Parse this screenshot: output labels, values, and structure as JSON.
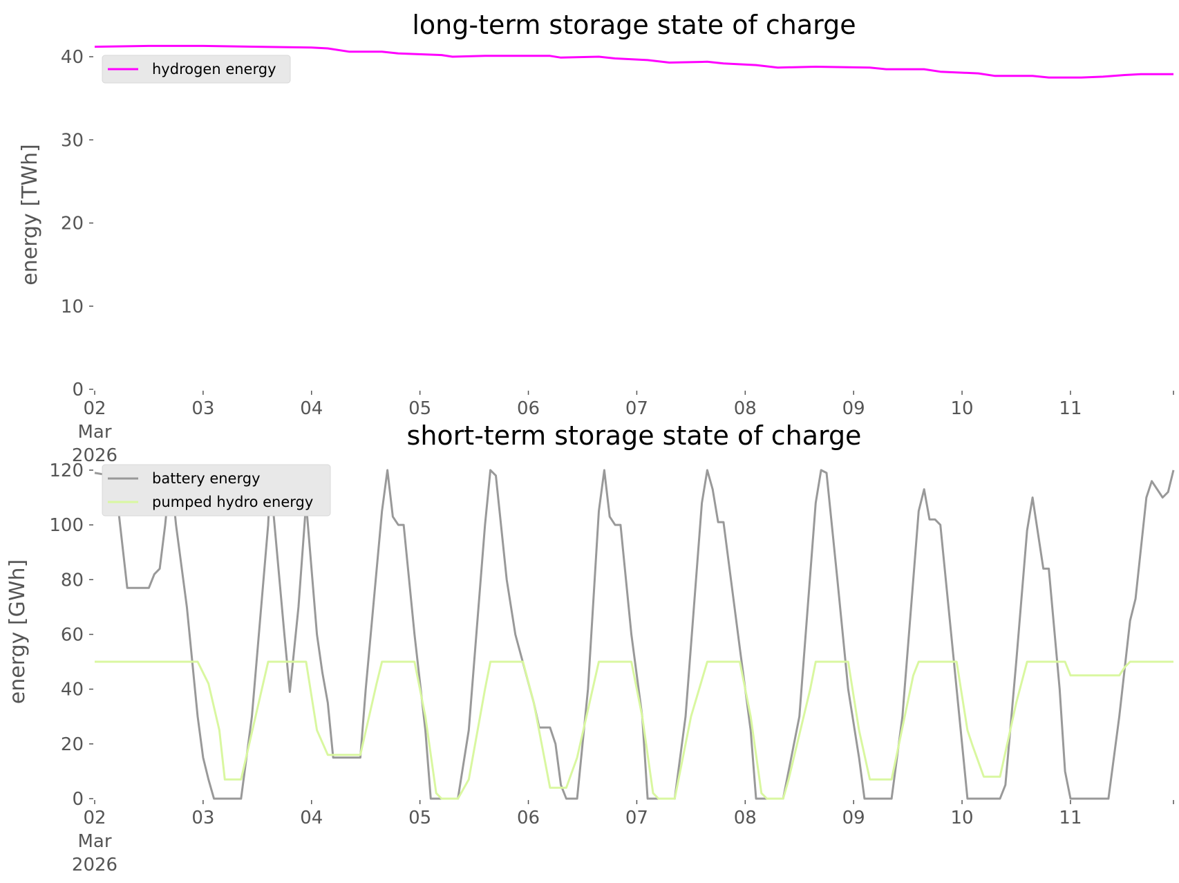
{
  "chart_data": [
    {
      "type": "line",
      "title": "long-term storage state of charge",
      "ylabel": "energy [TWh]",
      "xlabel": "",
      "ylim": [
        0,
        42
      ],
      "yticks": [
        0,
        10,
        20,
        30,
        40
      ],
      "xlim": [
        0,
        9.95
      ],
      "xticks": [
        {
          "day": 0,
          "lines": [
            "02",
            "Mar",
            "2026"
          ]
        },
        {
          "day": 1,
          "lines": [
            "03"
          ]
        },
        {
          "day": 2,
          "lines": [
            "04"
          ]
        },
        {
          "day": 3,
          "lines": [
            "05"
          ]
        },
        {
          "day": 4,
          "lines": [
            "06"
          ]
        },
        {
          "day": 5,
          "lines": [
            "07"
          ]
        },
        {
          "day": 6,
          "lines": [
            "08"
          ]
        },
        {
          "day": 7,
          "lines": [
            "09"
          ]
        },
        {
          "day": 8,
          "lines": [
            "10"
          ]
        },
        {
          "day": 9,
          "lines": [
            "11"
          ]
        }
      ],
      "grid": false,
      "legend_position": "upper-left",
      "series": [
        {
          "name": "hydrogen energy",
          "color": "#ff00ff",
          "points": [
            [
              0,
              41.2
            ],
            [
              0.5,
              41.3
            ],
            [
              1,
              41.3
            ],
            [
              1.5,
              41.2
            ],
            [
              2,
              41.1
            ],
            [
              2.15,
              41.0
            ],
            [
              2.35,
              40.6
            ],
            [
              2.65,
              40.6
            ],
            [
              2.8,
              40.4
            ],
            [
              3.2,
              40.2
            ],
            [
              3.3,
              40.0
            ],
            [
              3.6,
              40.1
            ],
            [
              4.2,
              40.1
            ],
            [
              4.3,
              39.9
            ],
            [
              4.65,
              40.0
            ],
            [
              4.8,
              39.8
            ],
            [
              5.1,
              39.6
            ],
            [
              5.3,
              39.3
            ],
            [
              5.65,
              39.4
            ],
            [
              5.8,
              39.2
            ],
            [
              6.1,
              39.0
            ],
            [
              6.3,
              38.7
            ],
            [
              6.65,
              38.8
            ],
            [
              7.15,
              38.7
            ],
            [
              7.3,
              38.5
            ],
            [
              7.65,
              38.5
            ],
            [
              7.8,
              38.2
            ],
            [
              8.15,
              38.0
            ],
            [
              8.3,
              37.7
            ],
            [
              8.65,
              37.7
            ],
            [
              8.8,
              37.5
            ],
            [
              9.1,
              37.5
            ],
            [
              9.3,
              37.6
            ],
            [
              9.5,
              37.8
            ],
            [
              9.65,
              37.9
            ],
            [
              9.95,
              37.9
            ]
          ]
        }
      ]
    },
    {
      "type": "line",
      "title": "short-term storage state of charge",
      "ylabel": "energy [GWh]",
      "xlabel": "",
      "ylim": [
        0,
        122
      ],
      "yticks": [
        0,
        20,
        40,
        60,
        80,
        100,
        120
      ],
      "xlim": [
        0,
        9.95
      ],
      "xticks": [
        {
          "day": 0,
          "lines": [
            "02",
            "Mar",
            "2026"
          ]
        },
        {
          "day": 1,
          "lines": [
            "03"
          ]
        },
        {
          "day": 2,
          "lines": [
            "04"
          ]
        },
        {
          "day": 3,
          "lines": [
            "05"
          ]
        },
        {
          "day": 4,
          "lines": [
            "06"
          ]
        },
        {
          "day": 5,
          "lines": [
            "07"
          ]
        },
        {
          "day": 6,
          "lines": [
            "08"
          ]
        },
        {
          "day": 7,
          "lines": [
            "09"
          ]
        },
        {
          "day": 8,
          "lines": [
            "10"
          ]
        },
        {
          "day": 9,
          "lines": [
            "11"
          ]
        }
      ],
      "grid": false,
      "legend_position": "upper-left",
      "series": [
        {
          "name": "battery energy",
          "color": "#999999",
          "points": [
            [
              0,
              119
            ],
            [
              0.15,
              118
            ],
            [
              0.2,
              112
            ],
            [
              0.3,
              77
            ],
            [
              0.45,
              77
            ],
            [
              0.5,
              77
            ],
            [
              0.55,
              82
            ],
            [
              0.6,
              84
            ],
            [
              0.65,
              100
            ],
            [
              0.7,
              120
            ],
            [
              0.75,
              100
            ],
            [
              0.85,
              70
            ],
            [
              0.95,
              30
            ],
            [
              1.0,
              15
            ],
            [
              1.05,
              7
            ],
            [
              1.1,
              0
            ],
            [
              1.35,
              0
            ],
            [
              1.45,
              30
            ],
            [
              1.6,
              100
            ],
            [
              1.62,
              117
            ],
            [
              1.75,
              60
            ],
            [
              1.8,
              39
            ],
            [
              1.88,
              70
            ],
            [
              1.95,
              108
            ],
            [
              2.05,
              60
            ],
            [
              2.1,
              46
            ],
            [
              2.15,
              35
            ],
            [
              2.2,
              15
            ],
            [
              2.45,
              15
            ],
            [
              2.5,
              40
            ],
            [
              2.65,
              105
            ],
            [
              2.7,
              120
            ],
            [
              2.75,
              103
            ],
            [
              2.8,
              100
            ],
            [
              2.85,
              100
            ],
            [
              2.95,
              60
            ],
            [
              3.05,
              25
            ],
            [
              3.1,
              0
            ],
            [
              3.35,
              0
            ],
            [
              3.45,
              25
            ],
            [
              3.6,
              100
            ],
            [
              3.65,
              120
            ],
            [
              3.7,
              118
            ],
            [
              3.8,
              80
            ],
            [
              3.88,
              60
            ],
            [
              4.05,
              35
            ],
            [
              4.1,
              26
            ],
            [
              4.2,
              26
            ],
            [
              4.25,
              20
            ],
            [
              4.3,
              5
            ],
            [
              4.35,
              0
            ],
            [
              4.45,
              0
            ],
            [
              4.55,
              40
            ],
            [
              4.65,
              105
            ],
            [
              4.7,
              120
            ],
            [
              4.75,
              103
            ],
            [
              4.8,
              100
            ],
            [
              4.85,
              100
            ],
            [
              4.95,
              60
            ],
            [
              5.05,
              30
            ],
            [
              5.1,
              0
            ],
            [
              5.35,
              0
            ],
            [
              5.45,
              30
            ],
            [
              5.6,
              108
            ],
            [
              5.65,
              120
            ],
            [
              5.7,
              113
            ],
            [
              5.75,
              101
            ],
            [
              5.8,
              101
            ],
            [
              5.95,
              55
            ],
            [
              6.05,
              25
            ],
            [
              6.1,
              0
            ],
            [
              6.35,
              0
            ],
            [
              6.5,
              30
            ],
            [
              6.65,
              108
            ],
            [
              6.7,
              120
            ],
            [
              6.75,
              119
            ],
            [
              6.85,
              80
            ],
            [
              6.95,
              40
            ],
            [
              7.05,
              15
            ],
            [
              7.1,
              0
            ],
            [
              7.35,
              0
            ],
            [
              7.45,
              30
            ],
            [
              7.55,
              80
            ],
            [
              7.6,
              105
            ],
            [
              7.65,
              113
            ],
            [
              7.7,
              102
            ],
            [
              7.75,
              102
            ],
            [
              7.8,
              100
            ],
            [
              7.9,
              60
            ],
            [
              8.0,
              20
            ],
            [
              8.05,
              0
            ],
            [
              8.35,
              0
            ],
            [
              8.4,
              5
            ],
            [
              8.5,
              50
            ],
            [
              8.6,
              98
            ],
            [
              8.65,
              110
            ],
            [
              8.7,
              97
            ],
            [
              8.75,
              84
            ],
            [
              8.8,
              84
            ],
            [
              8.9,
              40
            ],
            [
              8.95,
              10
            ],
            [
              9.0,
              0
            ],
            [
              9.35,
              0
            ],
            [
              9.45,
              30
            ],
            [
              9.55,
              65
            ],
            [
              9.6,
              73
            ],
            [
              9.7,
              110
            ],
            [
              9.75,
              116
            ],
            [
              9.85,
              110
            ],
            [
              9.9,
              112
            ],
            [
              9.95,
              120
            ]
          ]
        },
        {
          "name": "pumped hydro energy",
          "color": "#d9f7a0",
          "points": [
            [
              0,
              50
            ],
            [
              0.95,
              50
            ],
            [
              1.05,
              42
            ],
            [
              1.15,
              25
            ],
            [
              1.2,
              7
            ],
            [
              1.35,
              7
            ],
            [
              1.6,
              50
            ],
            [
              1.95,
              50
            ],
            [
              2.05,
              25
            ],
            [
              2.15,
              16
            ],
            [
              2.45,
              16
            ],
            [
              2.6,
              42
            ],
            [
              2.65,
              50
            ],
            [
              2.95,
              50
            ],
            [
              3.05,
              30
            ],
            [
              3.15,
              2
            ],
            [
              3.2,
              0
            ],
            [
              3.35,
              0
            ],
            [
              3.45,
              7
            ],
            [
              3.6,
              40
            ],
            [
              3.65,
              50
            ],
            [
              3.95,
              50
            ],
            [
              4.05,
              35
            ],
            [
              4.2,
              4
            ],
            [
              4.35,
              4
            ],
            [
              4.45,
              15
            ],
            [
              4.65,
              50
            ],
            [
              4.95,
              50
            ],
            [
              5.05,
              30
            ],
            [
              5.15,
              2
            ],
            [
              5.2,
              0
            ],
            [
              5.35,
              0
            ],
            [
              5.5,
              30
            ],
            [
              5.65,
              50
            ],
            [
              5.95,
              50
            ],
            [
              6.05,
              30
            ],
            [
              6.15,
              2
            ],
            [
              6.2,
              0
            ],
            [
              6.35,
              0
            ],
            [
              6.4,
              7
            ],
            [
              6.6,
              40
            ],
            [
              6.65,
              50
            ],
            [
              6.95,
              50
            ],
            [
              7.05,
              25
            ],
            [
              7.15,
              7
            ],
            [
              7.35,
              7
            ],
            [
              7.55,
              45
            ],
            [
              7.6,
              50
            ],
            [
              7.95,
              50
            ],
            [
              8.05,
              25
            ],
            [
              8.1,
              19
            ],
            [
              8.2,
              8
            ],
            [
              8.35,
              8
            ],
            [
              8.5,
              35
            ],
            [
              8.6,
              50
            ],
            [
              8.95,
              50
            ],
            [
              9.0,
              45
            ],
            [
              9.45,
              45
            ],
            [
              9.5,
              48
            ],
            [
              9.55,
              50
            ],
            [
              9.95,
              50
            ]
          ]
        }
      ]
    }
  ]
}
